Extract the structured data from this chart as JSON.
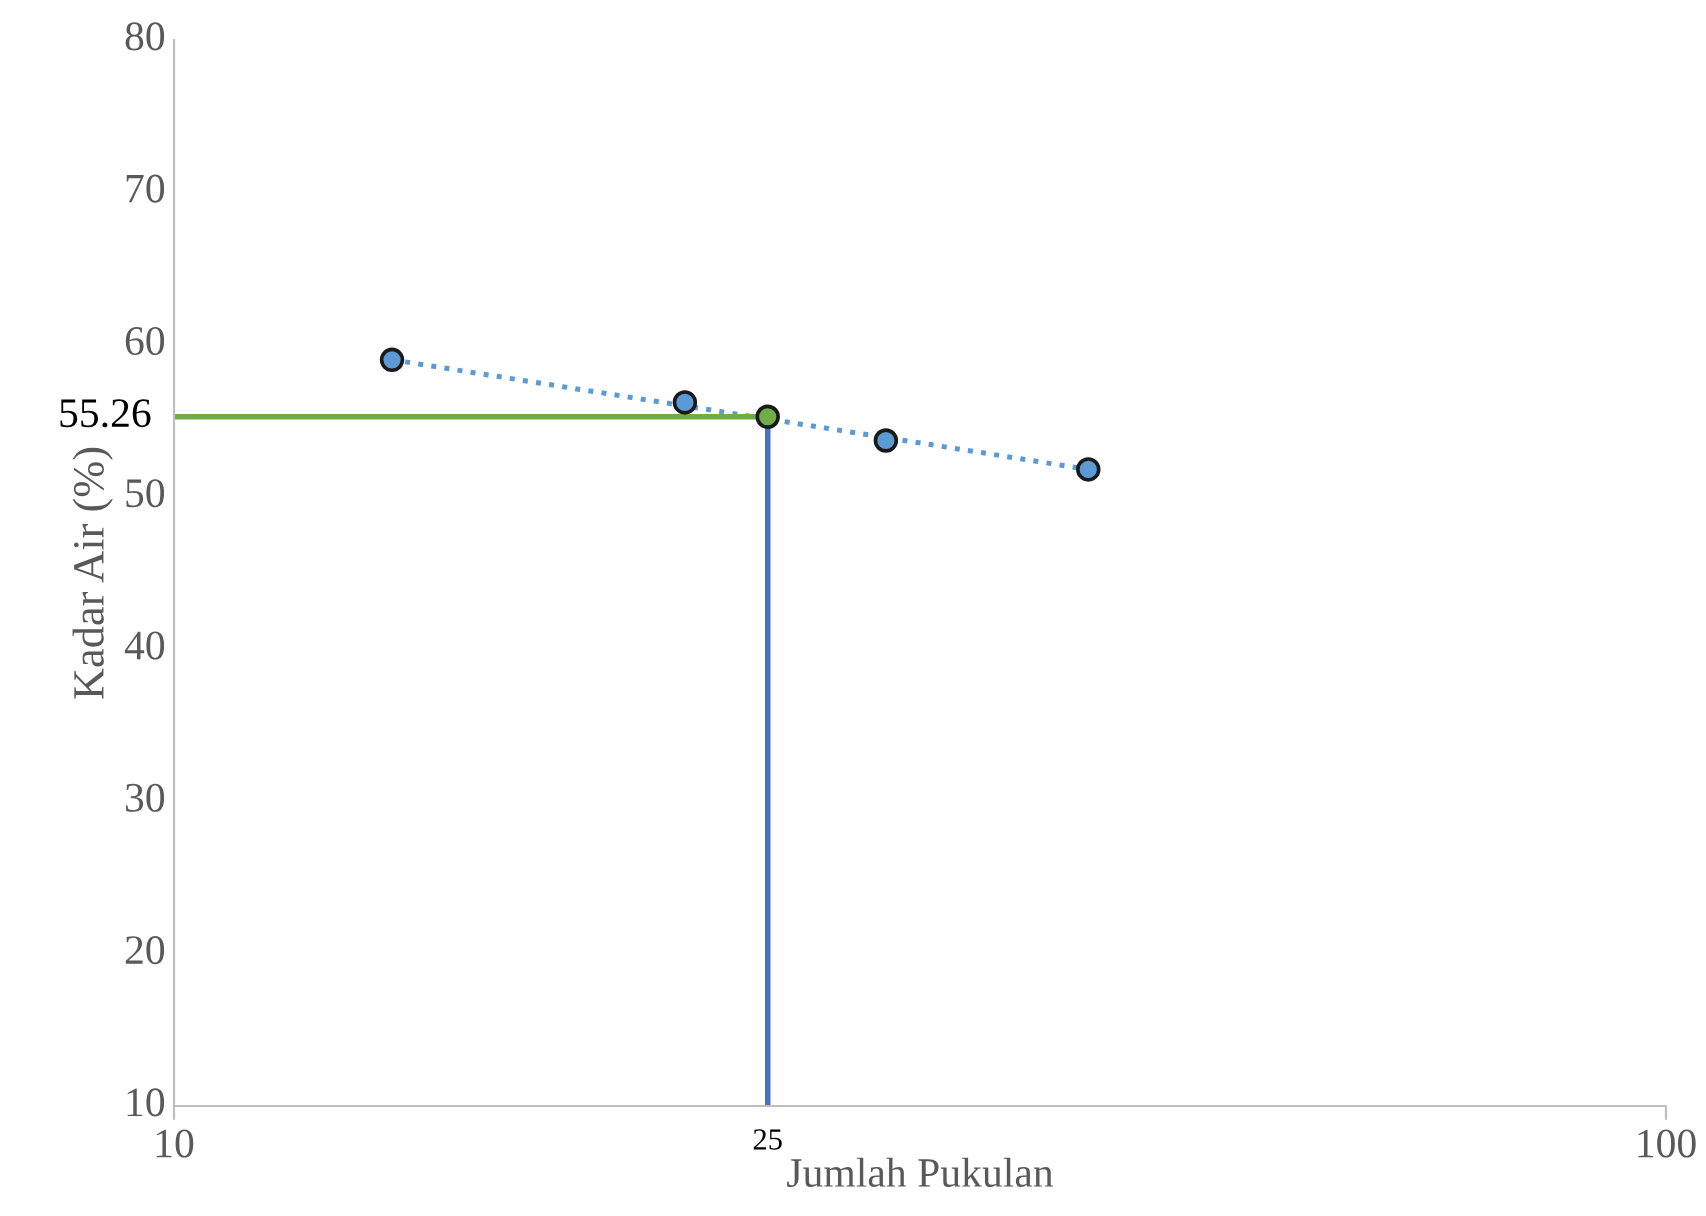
{
  "chart_data": {
    "type": "scatter",
    "xlabel": "Jumlah Pukulan",
    "ylabel": "Kadar Air (%)",
    "log": "x",
    "xlim": [
      10,
      100
    ],
    "xticks": [
      10,
      100
    ],
    "ylim": [
      10,
      80
    ],
    "yticks": [
      10,
      20,
      30,
      40,
      50,
      60,
      70,
      80
    ],
    "grid": false,
    "series": [
      {
        "type": "line",
        "color": "#5b9bd5",
        "line_style": "dotted",
        "marker": "none",
        "x": [
          14,
          41
        ],
        "values": [
          59.0,
          51.8
        ]
      },
      {
        "type": "line",
        "color": "#70ad47",
        "line_style": "solid",
        "marker": "none",
        "x": [
          10,
          25
        ],
        "values": [
          55.26,
          55.26
        ]
      },
      {
        "type": "line",
        "color": "#4472c4",
        "line_style": "solid",
        "marker": "none",
        "x": [
          25,
          25
        ],
        "values": [
          10,
          55.26
        ]
      },
      {
        "color": "#5b9bd5",
        "marker": "circle",
        "x": [
          14,
          22,
          30,
          41
        ],
        "values": [
          59.0,
          56.2,
          53.7,
          51.8
        ]
      },
      {
        "color": "#70ad47",
        "marker": "circle",
        "x": [
          25
        ],
        "values": [
          55.26
        ]
      }
    ],
    "annotations": [
      {
        "text": "55.26",
        "x": 10,
        "y": 55.26
      },
      {
        "text": "25",
        "x": 25,
        "y": 10
      }
    ]
  }
}
